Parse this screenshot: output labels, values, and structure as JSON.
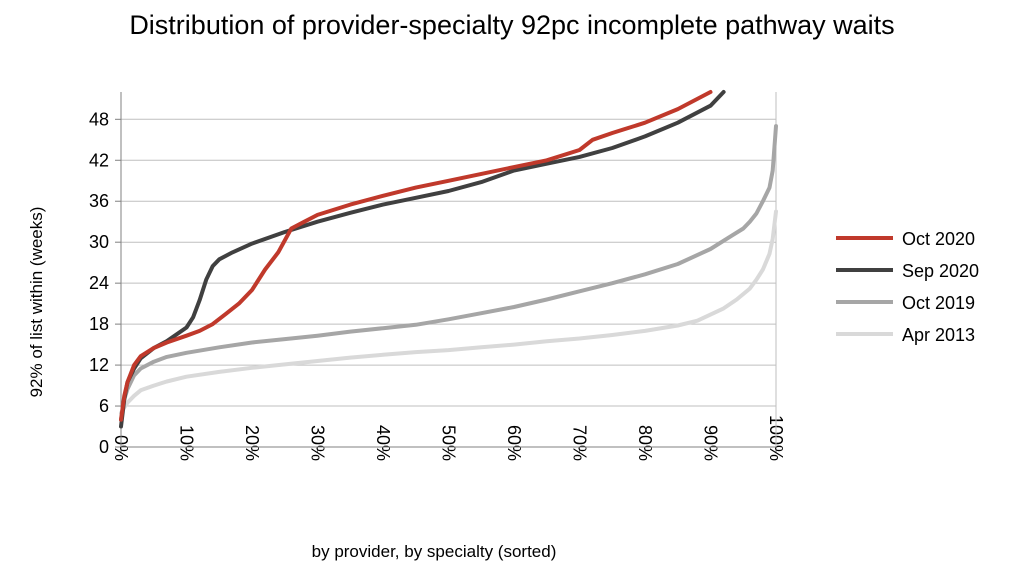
{
  "chart_data": {
    "type": "line",
    "title": "Distribution of provider-specialty 92pc incomplete pathway waits",
    "xlabel": "by provider, by specialty (sorted)",
    "ylabel": "92% of list within (weeks)",
    "xlim": [
      0,
      100
    ],
    "ylim": [
      0,
      52
    ],
    "xticks": [
      0,
      10,
      20,
      30,
      40,
      50,
      60,
      70,
      80,
      90,
      100
    ],
    "xtick_labels": [
      "0%",
      "10%",
      "20%",
      "30%",
      "40%",
      "50%",
      "60%",
      "70%",
      "80%",
      "90%",
      "100%"
    ],
    "yticks": [
      0,
      6,
      12,
      18,
      24,
      30,
      36,
      42,
      48
    ],
    "ytick_labels": [
      "0",
      "6",
      "12",
      "18",
      "24",
      "30",
      "36",
      "42",
      "48"
    ],
    "grid": "horizontal",
    "legend_position": "right",
    "series": [
      {
        "name": "Oct 2020",
        "color": "#c0392b",
        "x": [
          0,
          0.5,
          1,
          2,
          3,
          5,
          7,
          10,
          12,
          14,
          16,
          18,
          20,
          22,
          24,
          26,
          28,
          30,
          35,
          40,
          45,
          50,
          55,
          60,
          65,
          70,
          72,
          75,
          80,
          85,
          90
        ],
        "y": [
          4,
          7.5,
          9.5,
          12,
          13.3,
          14.5,
          15.3,
          16.3,
          17,
          18,
          19.5,
          21,
          23,
          26,
          28.5,
          32,
          33,
          34,
          35.5,
          36.8,
          38,
          39,
          40,
          41,
          42,
          43.5,
          45,
          46,
          47.5,
          49.5,
          52
        ]
      },
      {
        "name": "Sep 2020",
        "color": "#404040",
        "x": [
          0,
          0.5,
          1,
          2,
          3,
          5,
          7,
          10,
          11,
          12,
          13,
          14,
          15,
          17,
          20,
          25,
          30,
          35,
          40,
          45,
          50,
          55,
          60,
          65,
          70,
          75,
          80,
          85,
          90,
          92
        ],
        "y": [
          3,
          7,
          9.5,
          11.5,
          13,
          14.5,
          15.5,
          17.5,
          19,
          21.5,
          24.5,
          26.5,
          27.5,
          28.5,
          29.8,
          31.5,
          33,
          34.3,
          35.5,
          36.5,
          37.5,
          38.8,
          40.5,
          41.5,
          42.5,
          43.8,
          45.5,
          47.5,
          50,
          52
        ]
      },
      {
        "name": "Oct 2019",
        "color": "#a6a6a6",
        "x": [
          0,
          0.5,
          1,
          2,
          3,
          5,
          7,
          10,
          15,
          20,
          25,
          30,
          35,
          40,
          45,
          50,
          55,
          60,
          65,
          70,
          75,
          80,
          85,
          90,
          93,
          95,
          96,
          97,
          98,
          99,
          99.5,
          100
        ],
        "y": [
          4,
          7,
          8.5,
          10.5,
          11.5,
          12.5,
          13.2,
          13.8,
          14.6,
          15.3,
          15.8,
          16.3,
          16.9,
          17.4,
          17.9,
          18.7,
          19.6,
          20.5,
          21.6,
          22.8,
          24,
          25.3,
          26.8,
          29,
          30.8,
          32,
          33,
          34.2,
          36,
          38,
          40.5,
          47
        ]
      },
      {
        "name": "Apr 2013",
        "color": "#d9d9d9",
        "x": [
          0,
          0.5,
          1,
          2,
          3,
          5,
          7,
          10,
          15,
          20,
          25,
          30,
          35,
          40,
          45,
          50,
          55,
          60,
          65,
          70,
          75,
          80,
          85,
          88,
          90,
          92,
          94,
          96,
          97,
          98,
          99,
          99.5,
          100
        ],
        "y": [
          5,
          5.8,
          6.5,
          7.5,
          8.3,
          9,
          9.6,
          10.3,
          11,
          11.6,
          12.1,
          12.6,
          13.1,
          13.5,
          13.9,
          14.2,
          14.6,
          15,
          15.5,
          15.9,
          16.4,
          17,
          17.8,
          18.5,
          19.4,
          20.3,
          21.6,
          23.2,
          24.5,
          26,
          28.3,
          30.5,
          34.5
        ]
      }
    ]
  }
}
